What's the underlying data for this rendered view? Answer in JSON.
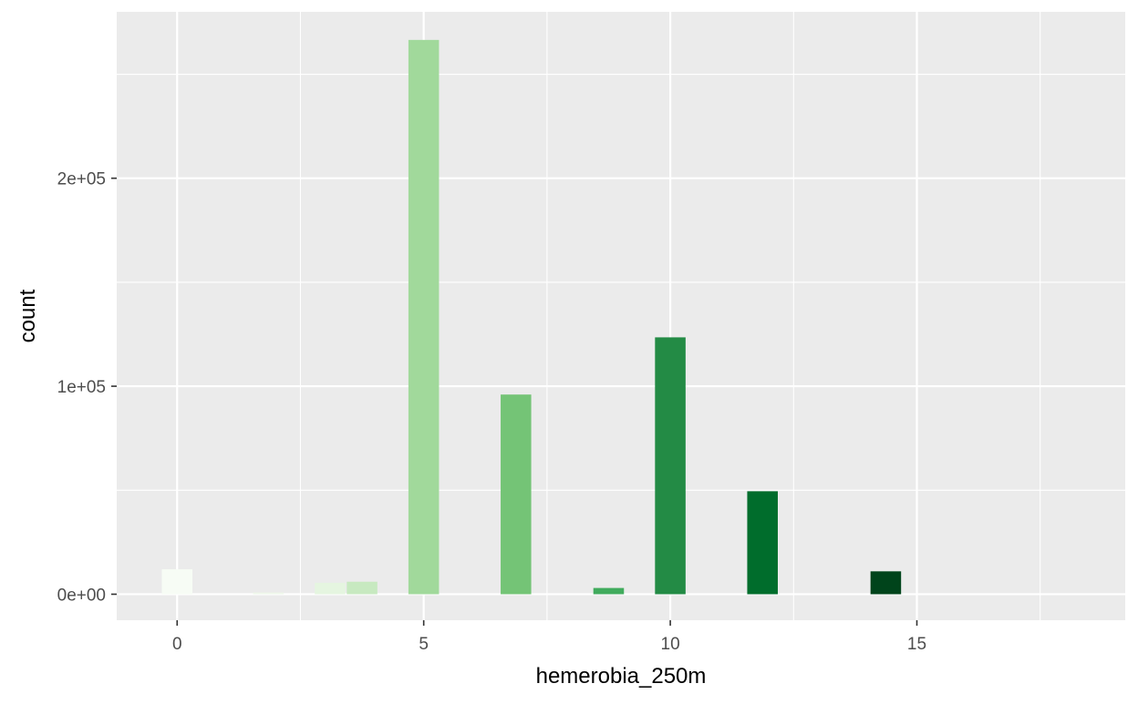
{
  "chart_data": {
    "type": "bar",
    "title": "",
    "xlabel": "hemerobia_250m",
    "ylabel": "count",
    "xlim": [
      -1.225,
      19.225
    ],
    "ylim": [
      -12500,
      280000
    ],
    "x_ticks": [
      0,
      5,
      10,
      15
    ],
    "x_tick_labels": [
      "0",
      "5",
      "10",
      "15"
    ],
    "x_minor_ticks": [
      2.5,
      7.5,
      12.5,
      17.5
    ],
    "y_ticks": [
      0,
      100000,
      200000
    ],
    "y_tick_labels": [
      "0e+00",
      "1e+05",
      "2e+05"
    ],
    "y_minor_ticks": [
      50000,
      150000,
      250000
    ],
    "bar_width": 0.62,
    "grid": true,
    "legend": "none",
    "panel_background": "#ebebeb",
    "grid_color": "#ffffff",
    "bars": [
      {
        "x": 0.0,
        "value": 12000,
        "color": "#f7fcf5"
      },
      {
        "x": 1.85,
        "value": 800,
        "color": "#eef8ea"
      },
      {
        "x": 3.1,
        "value": 5500,
        "color": "#e5f5e0"
      },
      {
        "x": 3.75,
        "value": 6000,
        "color": "#c7e9c0"
      },
      {
        "x": 5.0,
        "value": 266500,
        "color": "#a1d99b"
      },
      {
        "x": 6.87,
        "value": 96000,
        "color": "#74c476"
      },
      {
        "x": 8.75,
        "value": 3000,
        "color": "#41ab5d"
      },
      {
        "x": 10.0,
        "value": 123500,
        "color": "#238b45"
      },
      {
        "x": 11.87,
        "value": 49500,
        "color": "#006d2c"
      },
      {
        "x": 14.37,
        "value": 11000,
        "color": "#00441b"
      }
    ]
  }
}
